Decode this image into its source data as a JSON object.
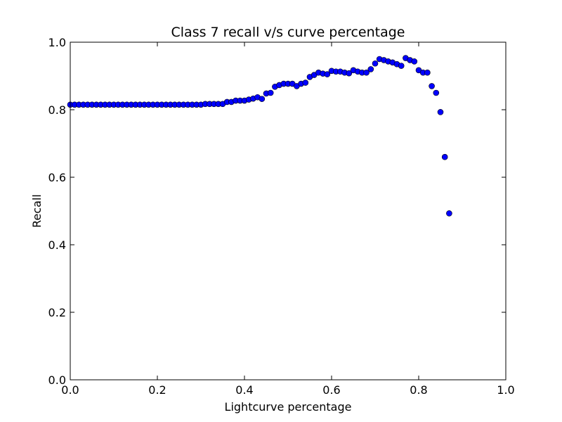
{
  "chart_data": {
    "type": "scatter",
    "title": "Class 7 recall v/s curve percentage",
    "xlabel": "Lightcurve percentage",
    "ylabel": "Recall",
    "xlim": [
      0.0,
      1.0
    ],
    "ylim": [
      0.0,
      1.0
    ],
    "xticks": [
      "0.0",
      "0.2",
      "0.4",
      "0.6",
      "0.8",
      "1.0"
    ],
    "yticks": [
      "0.0",
      "0.2",
      "0.4",
      "0.6",
      "0.8",
      "1.0"
    ],
    "grid": false,
    "marker_color": "#0000ff",
    "x": [
      0.0,
      0.01,
      0.02,
      0.03,
      0.04,
      0.05,
      0.06,
      0.07,
      0.08,
      0.09,
      0.1,
      0.11,
      0.12,
      0.13,
      0.14,
      0.15,
      0.16,
      0.17,
      0.18,
      0.19,
      0.2,
      0.21,
      0.22,
      0.23,
      0.24,
      0.25,
      0.26,
      0.27,
      0.28,
      0.29,
      0.3,
      0.31,
      0.32,
      0.33,
      0.34,
      0.35,
      0.36,
      0.37,
      0.38,
      0.39,
      0.4,
      0.41,
      0.42,
      0.43,
      0.44,
      0.45,
      0.46,
      0.47,
      0.48,
      0.49,
      0.5,
      0.51,
      0.52,
      0.53,
      0.54,
      0.55,
      0.56,
      0.57,
      0.58,
      0.59,
      0.6,
      0.61,
      0.62,
      0.63,
      0.64,
      0.65,
      0.66,
      0.67,
      0.68,
      0.69,
      0.7,
      0.71,
      0.72,
      0.73,
      0.74,
      0.75,
      0.76,
      0.77,
      0.78,
      0.79,
      0.8,
      0.81,
      0.82,
      0.83,
      0.84,
      0.85,
      0.86,
      0.87
    ],
    "y": [
      0.815,
      0.815,
      0.815,
      0.815,
      0.815,
      0.815,
      0.815,
      0.815,
      0.815,
      0.815,
      0.815,
      0.815,
      0.815,
      0.815,
      0.815,
      0.815,
      0.815,
      0.815,
      0.815,
      0.815,
      0.815,
      0.815,
      0.815,
      0.815,
      0.815,
      0.815,
      0.815,
      0.815,
      0.815,
      0.815,
      0.815,
      0.817,
      0.817,
      0.817,
      0.817,
      0.817,
      0.823,
      0.823,
      0.827,
      0.827,
      0.827,
      0.83,
      0.833,
      0.837,
      0.832,
      0.848,
      0.85,
      0.868,
      0.873,
      0.877,
      0.877,
      0.877,
      0.87,
      0.877,
      0.88,
      0.897,
      0.903,
      0.91,
      0.907,
      0.905,
      0.915,
      0.913,
      0.913,
      0.91,
      0.908,
      0.917,
      0.913,
      0.91,
      0.91,
      0.92,
      0.937,
      0.95,
      0.947,
      0.943,
      0.94,
      0.935,
      0.93,
      0.953,
      0.947,
      0.943,
      0.917,
      0.91,
      0.91,
      0.87,
      0.85,
      0.793,
      0.66,
      0.493
    ]
  }
}
